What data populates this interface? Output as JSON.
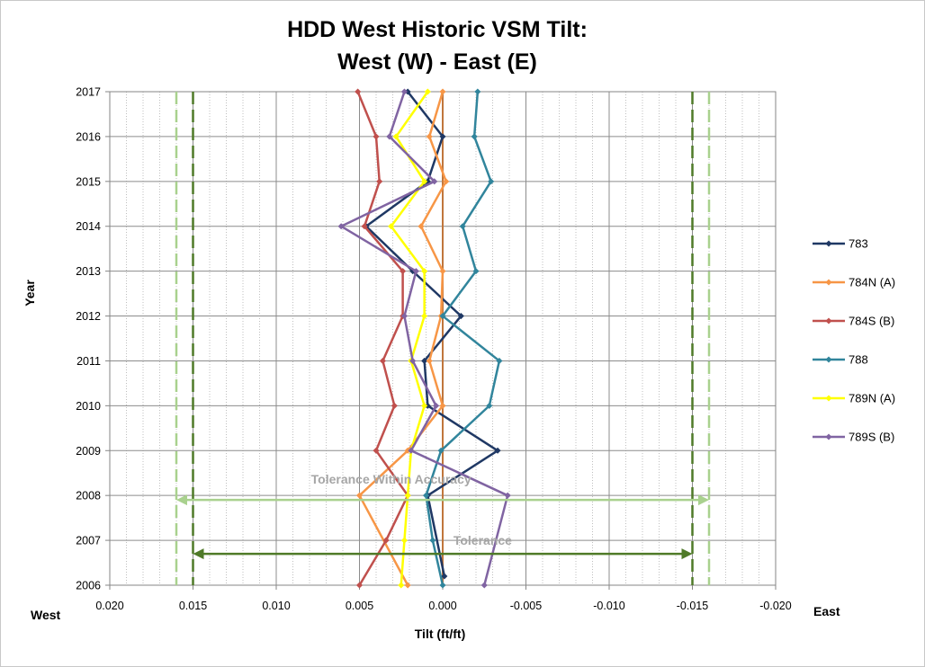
{
  "chart_data": {
    "type": "line",
    "title_line1": "HDD West Historic VSM Tilt:",
    "title_line2": "West (W) - East (E)",
    "xlabel": "Tilt (ft/ft)",
    "ylabel": "Year",
    "x_side_labels": {
      "left": "West",
      "right": "East"
    },
    "xlim": [
      0.02,
      -0.02
    ],
    "x_reversed": true,
    "x_ticks": [
      0.02,
      0.015,
      0.01,
      0.005,
      0.0,
      -0.005,
      -0.01,
      -0.015,
      -0.02
    ],
    "x_tick_labels": [
      "0.020",
      "0.015",
      "0.010",
      "0.005",
      "0.000",
      "-0.005",
      "-0.010",
      "-0.015",
      "-0.020"
    ],
    "ylim": [
      2006,
      2017
    ],
    "y_ticks": [
      2006,
      2007,
      2008,
      2009,
      2010,
      2011,
      2012,
      2013,
      2014,
      2015,
      2016,
      2017
    ],
    "grid": true,
    "legend_position": "right",
    "series": [
      {
        "name": "783",
        "color": "#1f3864",
        "points": [
          [
            -0.0001,
            2006.2
          ],
          [
            0.0009,
            2008
          ],
          [
            -0.0033,
            2009
          ],
          [
            0.0009,
            2010
          ],
          [
            0.0011,
            2011
          ],
          [
            -0.0011,
            2012
          ],
          [
            0.0018,
            2013
          ],
          [
            0.0046,
            2014
          ],
          [
            0.0009,
            2015
          ],
          [
            0.0,
            2016
          ],
          [
            0.0021,
            2017
          ]
        ]
      },
      {
        "name": "784N (A)",
        "color": "#f79646",
        "points": [
          [
            0.0021,
            2006
          ],
          [
            0.005,
            2008
          ],
          [
            0.0021,
            2009
          ],
          [
            0.0,
            2010
          ],
          [
            0.0008,
            2011
          ],
          [
            0.0001,
            2012
          ],
          [
            0.0,
            2013
          ],
          [
            0.0013,
            2014
          ],
          [
            -0.0002,
            2015
          ],
          [
            0.0008,
            2016
          ],
          [
            0.0,
            2017
          ]
        ]
      },
      {
        "name": "784S (B)",
        "color": "#c0504d",
        "points": [
          [
            0.005,
            2006
          ],
          [
            0.0034,
            2007
          ],
          [
            0.0021,
            2008
          ],
          [
            0.004,
            2009
          ],
          [
            0.0029,
            2010
          ],
          [
            0.0036,
            2011
          ],
          [
            0.0024,
            2012
          ],
          [
            0.0024,
            2013
          ],
          [
            0.0047,
            2014
          ],
          [
            0.0038,
            2015
          ],
          [
            0.004,
            2016
          ],
          [
            0.0051,
            2017
          ]
        ]
      },
      {
        "name": "788",
        "color": "#31859c",
        "points": [
          [
            0.0,
            2006
          ],
          [
            0.0006,
            2007
          ],
          [
            0.001,
            2008
          ],
          [
            0.0001,
            2009
          ],
          [
            -0.0028,
            2010
          ],
          [
            -0.0034,
            2011
          ],
          [
            0.0,
            2012
          ],
          [
            -0.002,
            2013
          ],
          [
            -0.0012,
            2014
          ],
          [
            -0.0029,
            2015
          ],
          [
            -0.0019,
            2016
          ],
          [
            -0.0021,
            2017
          ]
        ]
      },
      {
        "name": "789N (A)",
        "color": "#ffff00",
        "points": [
          [
            0.0025,
            2006
          ],
          [
            0.0023,
            2007
          ],
          [
            0.0021,
            2008
          ],
          [
            0.0019,
            2009
          ],
          [
            0.0011,
            2010
          ],
          [
            0.0019,
            2011
          ],
          [
            0.0011,
            2012
          ],
          [
            0.0011,
            2013
          ],
          [
            0.0031,
            2014
          ],
          [
            0.0011,
            2015
          ],
          [
            0.0028,
            2016
          ],
          [
            0.0009,
            2017
          ]
        ]
      },
      {
        "name": "789S (B)",
        "color": "#8064a2",
        "points": [
          [
            -0.0025,
            2006
          ],
          [
            -0.0039,
            2008
          ],
          [
            0.0019,
            2009
          ],
          [
            0.0004,
            2010
          ],
          [
            0.0018,
            2011
          ],
          [
            0.0023,
            2012
          ],
          [
            0.0016,
            2013
          ],
          [
            0.0061,
            2014
          ],
          [
            0.0005,
            2015
          ],
          [
            0.0032,
            2016
          ],
          [
            0.0023,
            2017
          ]
        ]
      }
    ],
    "vertical_lines": [
      {
        "x": 0.0,
        "color": "#c0763c",
        "style": "solid"
      },
      {
        "x": 0.015,
        "color": "#4f7a28",
        "style": "dashed"
      },
      {
        "x": -0.015,
        "color": "#4f7a28",
        "style": "dashed"
      },
      {
        "x": 0.016,
        "color": "#a9d18e",
        "style": "dashed"
      },
      {
        "x": -0.016,
        "color": "#a9d18e",
        "style": "dashed"
      }
    ],
    "annotations": [
      {
        "text": "Tolerance Within Accuracy",
        "color": "#a9d18e",
        "from": 0.016,
        "to": -0.016,
        "y": 2007.9
      },
      {
        "text": "Tolerance",
        "color": "#4f7a28",
        "from": 0.015,
        "to": -0.015,
        "y": 2006.7
      }
    ]
  }
}
